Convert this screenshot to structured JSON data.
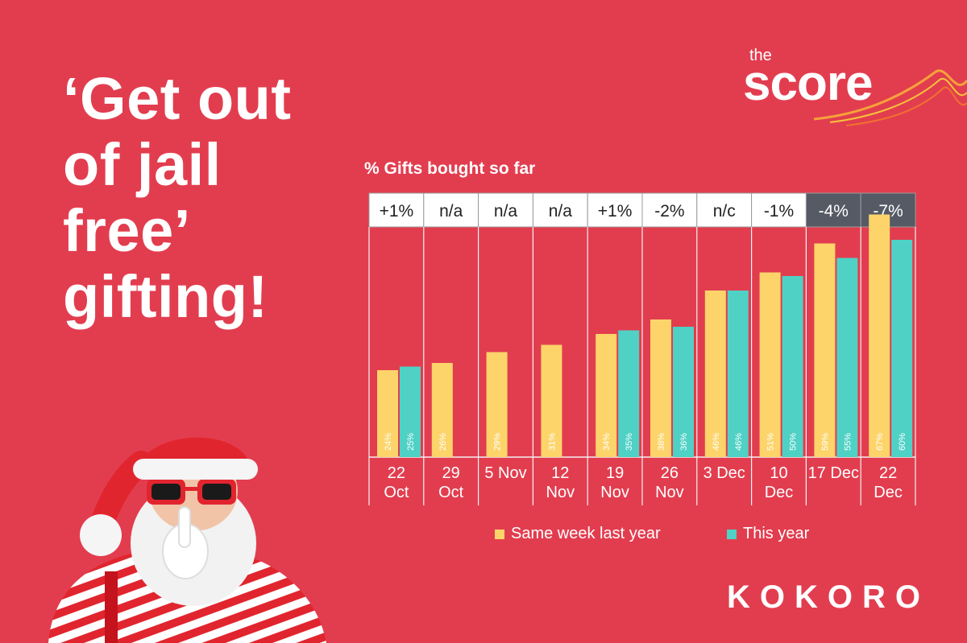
{
  "headline": [
    "‘Get out",
    "of jail",
    "free’",
    "gifting!"
  ],
  "logo": {
    "small": "the",
    "big": "score"
  },
  "brand": "KOKORO",
  "colors": {
    "background": "#e23d4f",
    "last_year": "#fcd46a",
    "this_year": "#4fd1c5",
    "box_light": "#ffffff",
    "box_dark": "#555a65"
  },
  "chart_data": {
    "type": "bar",
    "title": "% Gifts bought so far",
    "categories": [
      [
        "22",
        "Oct"
      ],
      [
        "29",
        "Oct"
      ],
      [
        "5 Nov"
      ],
      [
        "12",
        "Nov"
      ],
      [
        "19",
        "Nov"
      ],
      [
        "26",
        "Nov"
      ],
      [
        "3 Dec"
      ],
      [
        "10",
        "Dec"
      ],
      [
        "17 Dec"
      ],
      [
        "22",
        "Dec"
      ]
    ],
    "series": [
      {
        "name": "Same week last year",
        "values": [
          24,
          26,
          29,
          31,
          34,
          38,
          46,
          51,
          59,
          67
        ],
        "labels": [
          "24%",
          "26%",
          "29%",
          "31%",
          "34%",
          "38%",
          "46%",
          "51%",
          "59%",
          "67%"
        ]
      },
      {
        "name": "This year",
        "values": [
          25,
          null,
          null,
          null,
          35,
          36,
          46,
          50,
          55,
          60
        ],
        "labels": [
          "25%",
          "",
          "",
          "",
          "35%",
          "36%",
          "46%",
          "50%",
          "55%",
          "60%"
        ]
      }
    ],
    "changes": [
      "+1%",
      "n/a",
      "n/a",
      "n/a",
      "+1%",
      "-2%",
      "n/c",
      "-1%",
      "-4%",
      "-7%"
    ],
    "change_highlight": [
      false,
      false,
      false,
      false,
      false,
      false,
      false,
      false,
      true,
      true
    ],
    "ylim": [
      0,
      72
    ]
  }
}
